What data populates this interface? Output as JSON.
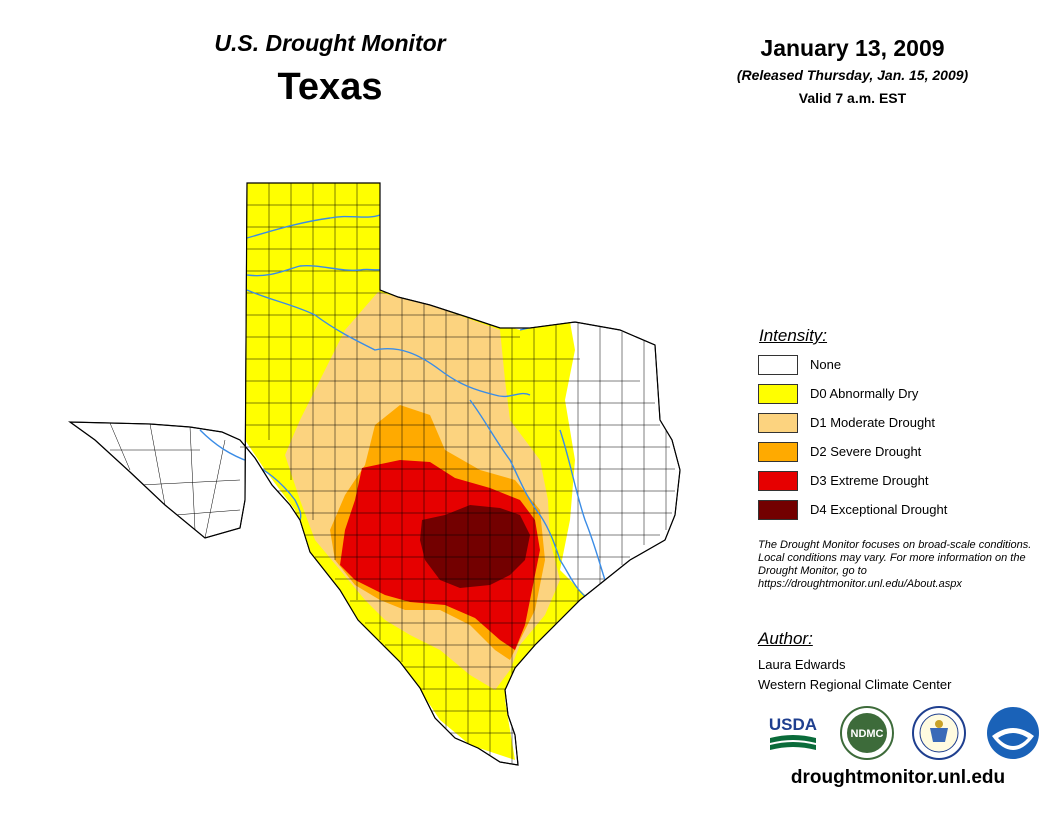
{
  "header": {
    "monitor_title": "U.S. Drought Monitor",
    "state": "Texas",
    "date": "January 13, 2009",
    "released": "(Released Thursday, Jan. 15, 2009)",
    "valid": "Valid 7 a.m. EST"
  },
  "legend": {
    "title": "Intensity:",
    "items": [
      {
        "label": "None",
        "color": "#ffffff"
      },
      {
        "label": "D0 Abnormally Dry",
        "color": "#ffff00"
      },
      {
        "label": "D1 Moderate Drought",
        "color": "#fcd37f"
      },
      {
        "label": "D2 Severe Drought",
        "color": "#ffaa00"
      },
      {
        "label": "D3 Extreme Drought",
        "color": "#e60000"
      },
      {
        "label": "D4 Exceptional Drought",
        "color": "#730000"
      }
    ]
  },
  "note": "The Drought Monitor focuses on broad-scale conditions. Local conditions may vary. For more information on the Drought Monitor, go to https://droughtmonitor.unl.edu/About.aspx",
  "author": {
    "title": "Author:",
    "name": "Laura Edwards",
    "organization": "Western Regional Climate Center"
  },
  "logos": {
    "usda": "USDA",
    "ndmc": "NDMC"
  },
  "footer_url": "droughtmonitor.unl.edu",
  "colors": {
    "county_lines": "#000000",
    "rivers": "#3a8ce6",
    "usda_green": "#0a6b3a",
    "usda_blue": "#1f3f8f",
    "ndmc_green": "#3d6b3a",
    "noaa_blue": "#1a62b8"
  }
}
